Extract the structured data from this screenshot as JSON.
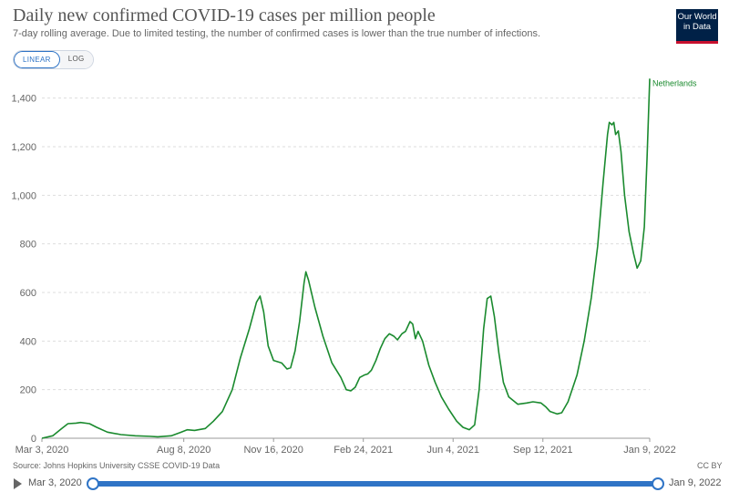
{
  "header": {
    "title": "Daily new confirmed COVID-19 cases per million people",
    "subtitle": "7-day rolling average. Due to limited testing, the number of confirmed cases is lower than the true number of infections.",
    "logo_line1": "Our World",
    "logo_line2": "in Data"
  },
  "controls": {
    "linear_label": "LINEAR",
    "log_label": "LOG",
    "active_scale": "linear"
  },
  "footer": {
    "source": "Source: Johns Hopkins University CSSE COVID-19 Data",
    "license": "CC BY"
  },
  "timeline": {
    "start_label": "Mar 3, 2020",
    "end_label": "Jan 9, 2022",
    "start_fraction": 0,
    "end_fraction": 1
  },
  "colors": {
    "series": "#1a8a2e",
    "accent": "#2f74c6",
    "grid": "#dddddd",
    "logo_bg": "#002147",
    "logo_accent": "#c8102e"
  },
  "chart_data": {
    "type": "line",
    "title": "Daily new confirmed COVID-19 cases per million people",
    "xlabel": "",
    "ylabel": "",
    "ylim": [
      0,
      1500
    ],
    "yticks": [
      0,
      200,
      400,
      600,
      800,
      1000,
      1200,
      1400
    ],
    "ytick_labels": [
      "0",
      "200",
      "400",
      "600",
      "800",
      "1,000",
      "1,200",
      "1,400"
    ],
    "x_domain": [
      "2020-03-03",
      "2022-01-09"
    ],
    "xticks": [
      "2020-03-03",
      "2020-08-08",
      "2020-11-16",
      "2021-02-24",
      "2021-06-04",
      "2021-09-12",
      "2022-01-09"
    ],
    "xtick_labels": [
      "Mar 3, 2020",
      "Aug 8, 2020",
      "Nov 16, 2020",
      "Feb 24, 2021",
      "Jun 4, 2021",
      "Sep 12, 2021",
      "Jan 9, 2022"
    ],
    "grid": true,
    "series": [
      {
        "name": "Netherlands",
        "points": [
          [
            "2020-03-03",
            0
          ],
          [
            "2020-03-15",
            10
          ],
          [
            "2020-03-25",
            40
          ],
          [
            "2020-04-01",
            60
          ],
          [
            "2020-04-10",
            62
          ],
          [
            "2020-04-15",
            65
          ],
          [
            "2020-04-25",
            60
          ],
          [
            "2020-05-03",
            45
          ],
          [
            "2020-05-15",
            25
          ],
          [
            "2020-05-30",
            15
          ],
          [
            "2020-06-15",
            10
          ],
          [
            "2020-07-01",
            8
          ],
          [
            "2020-07-10",
            6
          ],
          [
            "2020-07-25",
            10
          ],
          [
            "2020-08-05",
            25
          ],
          [
            "2020-08-12",
            35
          ],
          [
            "2020-08-20",
            32
          ],
          [
            "2020-09-01",
            40
          ],
          [
            "2020-09-10",
            70
          ],
          [
            "2020-09-20",
            110
          ],
          [
            "2020-10-01",
            200
          ],
          [
            "2020-10-10",
            330
          ],
          [
            "2020-10-20",
            450
          ],
          [
            "2020-10-28",
            560
          ],
          [
            "2020-11-01",
            585
          ],
          [
            "2020-11-05",
            520
          ],
          [
            "2020-11-10",
            380
          ],
          [
            "2020-11-16",
            320
          ],
          [
            "2020-11-25",
            310
          ],
          [
            "2020-12-01",
            285
          ],
          [
            "2020-12-05",
            290
          ],
          [
            "2020-12-10",
            360
          ],
          [
            "2020-12-15",
            480
          ],
          [
            "2020-12-20",
            640
          ],
          [
            "2020-12-22",
            685
          ],
          [
            "2020-12-25",
            650
          ],
          [
            "2021-01-01",
            540
          ],
          [
            "2021-01-10",
            420
          ],
          [
            "2021-01-20",
            310
          ],
          [
            "2021-01-30",
            250
          ],
          [
            "2021-02-05",
            200
          ],
          [
            "2021-02-10",
            195
          ],
          [
            "2021-02-15",
            210
          ],
          [
            "2021-02-20",
            250
          ],
          [
            "2021-02-25",
            260
          ],
          [
            "2021-03-01",
            265
          ],
          [
            "2021-03-05",
            280
          ],
          [
            "2021-03-10",
            320
          ],
          [
            "2021-03-15",
            370
          ],
          [
            "2021-03-20",
            410
          ],
          [
            "2021-03-25",
            430
          ],
          [
            "2021-03-30",
            420
          ],
          [
            "2021-04-03",
            405
          ],
          [
            "2021-04-08",
            430
          ],
          [
            "2021-04-12",
            440
          ],
          [
            "2021-04-17",
            480
          ],
          [
            "2021-04-20",
            470
          ],
          [
            "2021-04-23",
            410
          ],
          [
            "2021-04-26",
            440
          ],
          [
            "2021-05-01",
            400
          ],
          [
            "2021-05-08",
            300
          ],
          [
            "2021-05-15",
            230
          ],
          [
            "2021-05-22",
            170
          ],
          [
            "2021-05-30",
            120
          ],
          [
            "2021-06-08",
            70
          ],
          [
            "2021-06-15",
            45
          ],
          [
            "2021-06-22",
            35
          ],
          [
            "2021-06-28",
            55
          ],
          [
            "2021-07-03",
            200
          ],
          [
            "2021-07-08",
            450
          ],
          [
            "2021-07-12",
            575
          ],
          [
            "2021-07-16",
            585
          ],
          [
            "2021-07-20",
            500
          ],
          [
            "2021-07-25",
            350
          ],
          [
            "2021-07-30",
            230
          ],
          [
            "2021-08-05",
            170
          ],
          [
            "2021-08-15",
            140
          ],
          [
            "2021-08-25",
            145
          ],
          [
            "2021-09-01",
            150
          ],
          [
            "2021-09-10",
            145
          ],
          [
            "2021-09-15",
            130
          ],
          [
            "2021-09-20",
            110
          ],
          [
            "2021-09-28",
            100
          ],
          [
            "2021-10-03",
            105
          ],
          [
            "2021-10-10",
            150
          ],
          [
            "2021-10-20",
            260
          ],
          [
            "2021-10-28",
            400
          ],
          [
            "2021-11-05",
            580
          ],
          [
            "2021-11-12",
            790
          ],
          [
            "2021-11-18",
            1050
          ],
          [
            "2021-11-23",
            1250
          ],
          [
            "2021-11-25",
            1300
          ],
          [
            "2021-11-28",
            1290
          ],
          [
            "2021-11-30",
            1300
          ],
          [
            "2021-12-02",
            1250
          ],
          [
            "2021-12-05",
            1265
          ],
          [
            "2021-12-08",
            1180
          ],
          [
            "2021-12-12",
            1000
          ],
          [
            "2021-12-17",
            850
          ],
          [
            "2021-12-22",
            760
          ],
          [
            "2021-12-26",
            700
          ],
          [
            "2021-12-30",
            730
          ],
          [
            "2022-01-03",
            870
          ],
          [
            "2022-01-06",
            1150
          ],
          [
            "2022-01-09",
            1480
          ]
        ]
      }
    ]
  }
}
